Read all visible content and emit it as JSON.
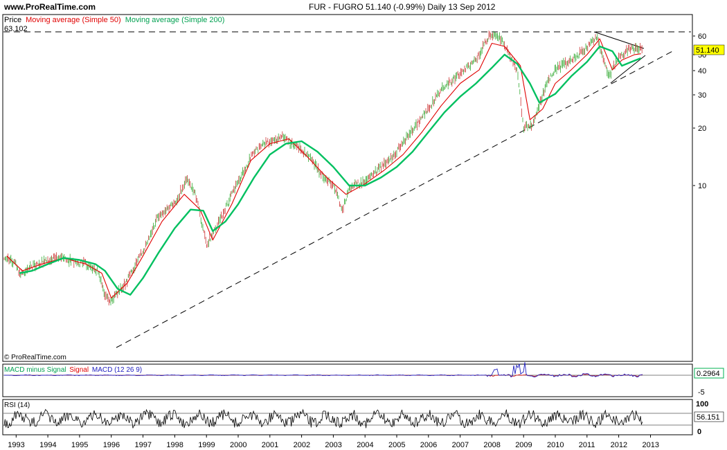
{
  "header": {
    "site": "www.ProRealTime.com",
    "title": "FUR - FUGRO    51.140 (-0.99%)    Daily  13 Sep 2012"
  },
  "legend": {
    "price_label": "Price",
    "ma50_label": "Moving average (Simple 50)",
    "ma200_label": "Moving average (Simple 200)",
    "max_value": "63.102",
    "watermark": "© ProRealTime.com"
  },
  "price_axis": {
    "ticks": [
      "60",
      "50",
      "40",
      "30",
      "20",
      "10"
    ],
    "current_price": "51.140"
  },
  "macd": {
    "label_a": "MACD minus Signal",
    "label_b": "Signal",
    "label_c": "MACD (12 26 9)",
    "value": "0.2964",
    "tick_low": "-5"
  },
  "rsi": {
    "label": "RSI (14)",
    "value": "56.151",
    "tick_high": "100",
    "tick_low": "0"
  },
  "x_axis": {
    "years": [
      "1993",
      "1994",
      "1995",
      "1996",
      "1997",
      "1998",
      "1999",
      "2000",
      "2001",
      "2002",
      "2003",
      "2004",
      "2005",
      "2006",
      "2007",
      "2008",
      "2009",
      "2010",
      "2011",
      "2012",
      "2013"
    ]
  },
  "colors": {
    "ma50": "#e00000",
    "ma200": "#00c060",
    "price_up": "#33aa33",
    "price_down": "#cc3333",
    "macd_line": "#2020c0",
    "signal_line": "#e00000",
    "macd_hist": "#00b050",
    "price_badge": "#ffff00"
  },
  "chart_data": {
    "type": "line",
    "scale": "log",
    "series": [
      {
        "name": "Price",
        "x": [
          1992.6,
          1993.0,
          1993.1,
          1993.5,
          1994.0,
          1994.3,
          1994.8,
          1995.2,
          1995.6,
          1995.8,
          1996.0,
          1996.5,
          1997.0,
          1997.5,
          1998.0,
          1998.4,
          1998.7,
          1999.0,
          1999.5,
          2000.0,
          2000.5,
          2001.0,
          2001.4,
          2001.8,
          2002.2,
          2002.6,
          2003.0,
          2003.3,
          2003.5,
          2004.0,
          2004.5,
          2005.0,
          2005.5,
          2006.0,
          2006.5,
          2007.0,
          2007.5,
          2007.9,
          2008.3,
          2008.8,
          2009.0,
          2009.3,
          2009.7,
          2010.0,
          2010.5,
          2011.0,
          2011.3,
          2011.7,
          2012.0,
          2012.4,
          2012.7
        ],
        "values": [
          4.3,
          3.9,
          3.4,
          3.8,
          4.1,
          4.3,
          4.0,
          3.9,
          3.6,
          2.6,
          2.5,
          3.2,
          4.6,
          7.0,
          8.0,
          11.0,
          8.5,
          4.9,
          7.0,
          10.5,
          15.0,
          17.0,
          18.0,
          16.0,
          14.5,
          11.5,
          10.0,
          7.5,
          9.8,
          10.5,
          12.5,
          15.0,
          19.5,
          25.0,
          33.0,
          38.0,
          45.0,
          60.0,
          58.0,
          40.0,
          20.0,
          21.0,
          33.0,
          40.0,
          45.0,
          52.0,
          60.0,
          37.0,
          47.0,
          52.0,
          51.14
        ]
      },
      {
        "name": "Moving average (Simple 50)",
        "x": [
          1992.7,
          1993.2,
          1993.8,
          1994.5,
          1995.2,
          1995.7,
          1996.0,
          1996.5,
          1997.0,
          1997.6,
          1998.3,
          1998.8,
          1999.2,
          1999.8,
          2000.4,
          2001.0,
          2001.6,
          2002.2,
          2002.8,
          2003.4,
          2004.0,
          2004.6,
          2005.2,
          2005.8,
          2006.4,
          2007.0,
          2007.6,
          2008.0,
          2008.4,
          2008.9,
          2009.2,
          2009.6,
          2010.0,
          2010.5,
          2011.0,
          2011.4,
          2011.8,
          2012.1,
          2012.5,
          2012.7
        ],
        "values": [
          4.3,
          3.6,
          3.9,
          4.2,
          3.9,
          3.5,
          2.6,
          3.1,
          4.3,
          6.5,
          9.0,
          7.5,
          5.2,
          8.0,
          13.5,
          16.5,
          17.5,
          14.0,
          11.0,
          9.0,
          10.2,
          12.0,
          14.5,
          19.0,
          26.0,
          34.0,
          40.0,
          55.0,
          53.0,
          42.0,
          22.0,
          25.0,
          34.0,
          40.0,
          48.0,
          58.0,
          40.0,
          45.0,
          48.0,
          48.5
        ]
      },
      {
        "name": "Moving average (Simple 200)",
        "x": [
          1993.1,
          1993.5,
          1994.0,
          1994.5,
          1995.0,
          1995.5,
          1995.8,
          1996.2,
          1996.6,
          1997.0,
          1997.5,
          1998.0,
          1998.5,
          1998.9,
          1999.2,
          1999.6,
          2000.0,
          2000.5,
          2001.0,
          2001.5,
          2002.0,
          2002.5,
          2003.0,
          2003.5,
          2004.0,
          2004.5,
          2005.0,
          2005.5,
          2006.0,
          2006.5,
          2007.0,
          2007.5,
          2008.0,
          2008.4,
          2008.8,
          2009.2,
          2009.5,
          2010.0,
          2010.5,
          2011.0,
          2011.4,
          2011.8,
          2012.1,
          2012.4,
          2012.7
        ],
        "values": [
          3.5,
          3.6,
          3.9,
          4.2,
          4.1,
          3.9,
          3.6,
          2.9,
          2.7,
          3.3,
          4.5,
          6.0,
          7.5,
          7.4,
          5.8,
          6.5,
          8.0,
          11.0,
          14.5,
          16.5,
          17.0,
          15.0,
          12.5,
          10.0,
          10.0,
          11.0,
          12.5,
          15.0,
          19.0,
          24.0,
          29.0,
          34.0,
          41.0,
          48.0,
          43.0,
          34.0,
          27.0,
          30.0,
          37.0,
          44.0,
          53.0,
          50.0,
          42.0,
          44.0,
          46.0
        ]
      }
    ]
  }
}
